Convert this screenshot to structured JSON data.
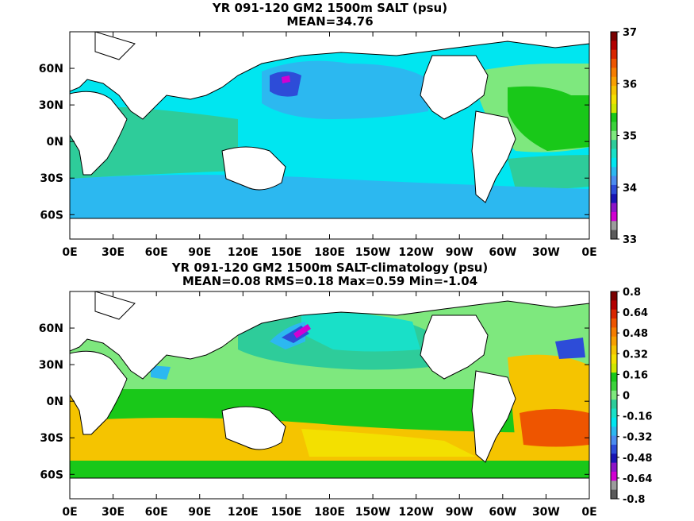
{
  "chart_data": [
    {
      "type": "heatmap",
      "title": "YR 091-120 GM2 1500m SALT (psu)",
      "subtitle": "MEAN=34.76",
      "x_ticks": [
        "0E",
        "30E",
        "60E",
        "90E",
        "120E",
        "150E",
        "180E",
        "150W",
        "120W",
        "90W",
        "60W",
        "30W",
        "0E"
      ],
      "y_ticks": [
        "60N",
        "30N",
        "0N",
        "30S",
        "60S"
      ],
      "x_range": [
        0,
        360
      ],
      "y_range": [
        -80,
        90
      ],
      "colorbar": {
        "labels": [
          "37",
          "36",
          "35",
          "34",
          "33"
        ],
        "colors": [
          "#7a0000",
          "#b30000",
          "#d92600",
          "#ee5500",
          "#f57d00",
          "#f8a000",
          "#f5c400",
          "#f3e000",
          "#cfe800",
          "#19c819",
          "#3cd23c",
          "#7ee87e",
          "#2ecc9a",
          "#19e0c8",
          "#00e6f0",
          "#2cb8f0",
          "#4b8cf0",
          "#2d4cd8",
          "#1a14b4",
          "#8c14c8",
          "#d200d2",
          "#9c9c9c",
          "#5a5a5a"
        ]
      },
      "ocean_fill": "#00e6f0"
    },
    {
      "type": "heatmap",
      "title": "YR 091-120 GM2 1500m SALT-climatology (psu)",
      "subtitle": "MEAN=0.08   RMS=0.18   Max=0.59   Min=-1.04",
      "x_ticks": [
        "0E",
        "30E",
        "60E",
        "90E",
        "120E",
        "150E",
        "180E",
        "150W",
        "120W",
        "90W",
        "60W",
        "30W",
        "0E"
      ],
      "y_ticks": [
        "60N",
        "30N",
        "0N",
        "30S",
        "60S"
      ],
      "x_range": [
        0,
        360
      ],
      "y_range": [
        -80,
        90
      ],
      "colorbar": {
        "labels": [
          "0.8",
          "0.64",
          "0.48",
          "0.32",
          "0.16",
          "0",
          "-0.16",
          "-0.32",
          "-0.48",
          "-0.64",
          "-0.8"
        ],
        "colors": [
          "#7a0000",
          "#b30000",
          "#d92600",
          "#ee5500",
          "#f57d00",
          "#f8a000",
          "#f5c400",
          "#f3e000",
          "#cfe800",
          "#19c819",
          "#3cd23c",
          "#7ee87e",
          "#2ecc9a",
          "#19e0c8",
          "#00e6f0",
          "#2cb8f0",
          "#4b8cf0",
          "#2d4cd8",
          "#1a14b4",
          "#8c14c8",
          "#d200d2",
          "#9c9c9c",
          "#5a5a5a"
        ]
      },
      "ocean_fill": "#7ee87e"
    }
  ]
}
